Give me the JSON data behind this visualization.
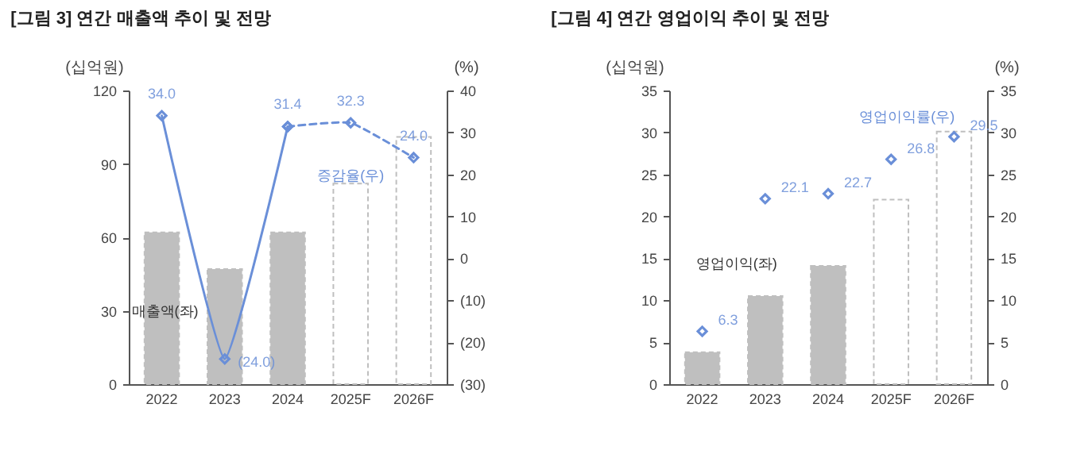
{
  "chart_data": [
    {
      "type": "bar",
      "title": "[그림 3] 연간 매출액 추이 및 전망",
      "ylabel": "(십억원)",
      "y2label": "(%)",
      "categories": [
        "2022",
        "2023",
        "2024",
        "2025F",
        "2026F"
      ],
      "ylim": [
        0,
        120
      ],
      "yticks": [
        0,
        30,
        60,
        90,
        120
      ],
      "y2lim": [
        -30,
        40
      ],
      "y2ticks": [
        {
          "value": -30,
          "label": "(30)"
        },
        {
          "value": -20,
          "label": "(20)"
        },
        {
          "value": -10,
          "label": "(10)"
        },
        0,
        10,
        20,
        30,
        40
      ],
      "marker": "diamond",
      "series": [
        {
          "name": "매출액(좌)",
          "color": "#bfbfbf",
          "colors": [
            "#bfbfbf",
            "#bfbfbf",
            "#bfbfbf",
            "#ffffff",
            "#ffffff"
          ],
          "values": [
            62,
            47,
            62,
            82,
            101
          ]
        },
        {
          "name": "증감율(우)",
          "type": "line",
          "axis": "y2",
          "color": "#6a8fd8",
          "line_style": "solid",
          "values": [
            34.0,
            -24.0,
            31.4,
            null,
            null
          ],
          "value_labels": [
            "34.0",
            "(24.0)",
            "31.4",
            null,
            null
          ]
        },
        {
          "type": "line",
          "axis": "y2",
          "color": "#6a8fd8",
          "line_style": "dashed",
          "values": [
            null,
            null,
            31.4,
            32.3,
            24.0
          ],
          "value_labels": [
            null,
            null,
            null,
            "32.3",
            "24.0"
          ]
        }
      ]
    },
    {
      "type": "bar",
      "title": "[그림 4] 연간 영업이익 추이 및 전망",
      "ylabel": "(십억원)",
      "y2label": "(%)",
      "categories": [
        "2022",
        "2023",
        "2024",
        "2025F",
        "2026F"
      ],
      "ylim": [
        0,
        35
      ],
      "yticks": [
        0,
        5,
        10,
        15,
        20,
        25,
        30,
        35
      ],
      "y2lim": [
        0,
        35
      ],
      "y2ticks": [
        0,
        5,
        10,
        15,
        20,
        25,
        30,
        35
      ],
      "marker": "diamond",
      "series": [
        {
          "name": "영업이익(좌)",
          "color": "#bfbfbf",
          "colors": [
            "#bfbfbf",
            "#bfbfbf",
            "#bfbfbf",
            "#ffffff",
            "#ffffff"
          ],
          "values": [
            3.8,
            10.5,
            14.1,
            22.0,
            30.1
          ]
        },
        {
          "name": "영업이익률(우)",
          "type": "scatter",
          "axis": "y2",
          "color": "#6a8fd8",
          "values": [
            6.3,
            22.1,
            22.7,
            26.8,
            29.5
          ],
          "value_labels": [
            "6.3",
            "22.1",
            "22.7",
            "26.8",
            "29.5"
          ]
        }
      ]
    }
  ]
}
